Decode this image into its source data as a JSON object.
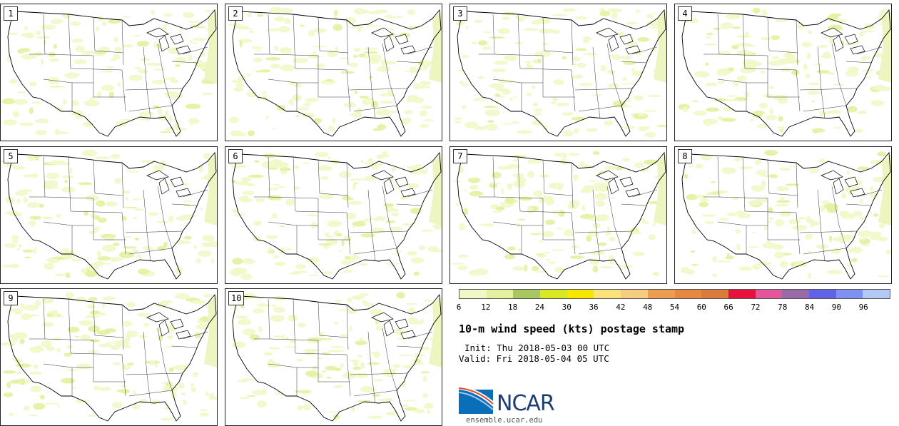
{
  "members": [
    "1",
    "2",
    "3",
    "4",
    "5",
    "6",
    "7",
    "8",
    "9",
    "10"
  ],
  "legend": {
    "colors": [
      "#f2f7c8",
      "#e2f2a0",
      "#a9c760",
      "#d8e823",
      "#f6e600",
      "#fbe37a",
      "#f5cc80",
      "#ec9e4e",
      "#e68840",
      "#db7a3c",
      "#e8103c",
      "#e3579a",
      "#9a6aa6",
      "#6063e8",
      "#7f91f0",
      "#b4c8f6"
    ],
    "ticks": [
      "6",
      "12",
      "18",
      "24",
      "30",
      "36",
      "42",
      "48",
      "54",
      "60",
      "66",
      "72",
      "78",
      "84",
      "90",
      "96"
    ]
  },
  "title": "10-m wind speed (kts) postage stamp",
  "init": "Init: Thu 2018-05-03 00 UTC",
  "valid": "Valid: Fri 2018-05-04 05 UTC",
  "logo": {
    "text": "NCAR",
    "url_text": "ensemble.ucar.edu"
  }
}
